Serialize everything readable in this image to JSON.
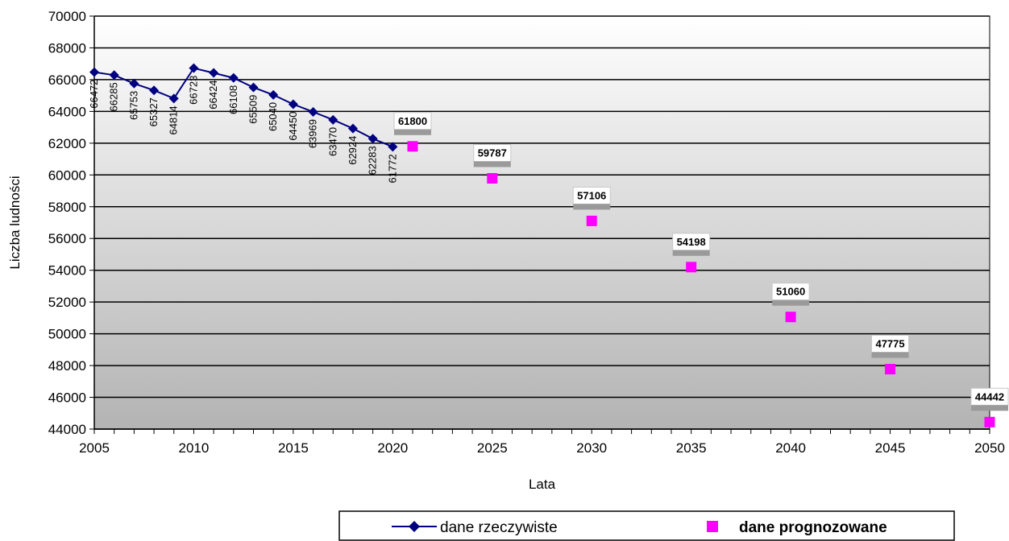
{
  "chart_data": {
    "type": "line",
    "title": "",
    "xlabel": "Lata",
    "ylabel": "Liczba ludności",
    "xlim": [
      2005,
      2050
    ],
    "ylim": [
      44000,
      70000
    ],
    "x_ticks": [
      2005,
      2010,
      2015,
      2020,
      2025,
      2030,
      2035,
      2040,
      2045,
      2050
    ],
    "y_ticks": [
      44000,
      46000,
      48000,
      50000,
      52000,
      54000,
      56000,
      58000,
      60000,
      62000,
      64000,
      66000,
      68000,
      70000
    ],
    "grid": "horizontal",
    "legend_position": "bottom-right",
    "series": [
      {
        "name": "dane rzeczywiste",
        "marker": "diamond",
        "color": "#000080",
        "x": [
          2005,
          2006,
          2007,
          2008,
          2009,
          2010,
          2011,
          2012,
          2013,
          2014,
          2015,
          2016,
          2017,
          2018,
          2019,
          2020
        ],
        "values": [
          66472,
          66285,
          65753,
          65327,
          64814,
          66723,
          66424,
          66108,
          65509,
          65040,
          64450,
          63969,
          63470,
          62924,
          62283,
          61772
        ]
      },
      {
        "name": "dane prognozowane",
        "marker": "square",
        "color": "#FF00FF",
        "x": [
          2021,
          2025,
          2030,
          2035,
          2040,
          2045,
          2050
        ],
        "values": [
          61800,
          59787,
          57106,
          54198,
          51060,
          47775,
          44442
        ]
      }
    ]
  }
}
